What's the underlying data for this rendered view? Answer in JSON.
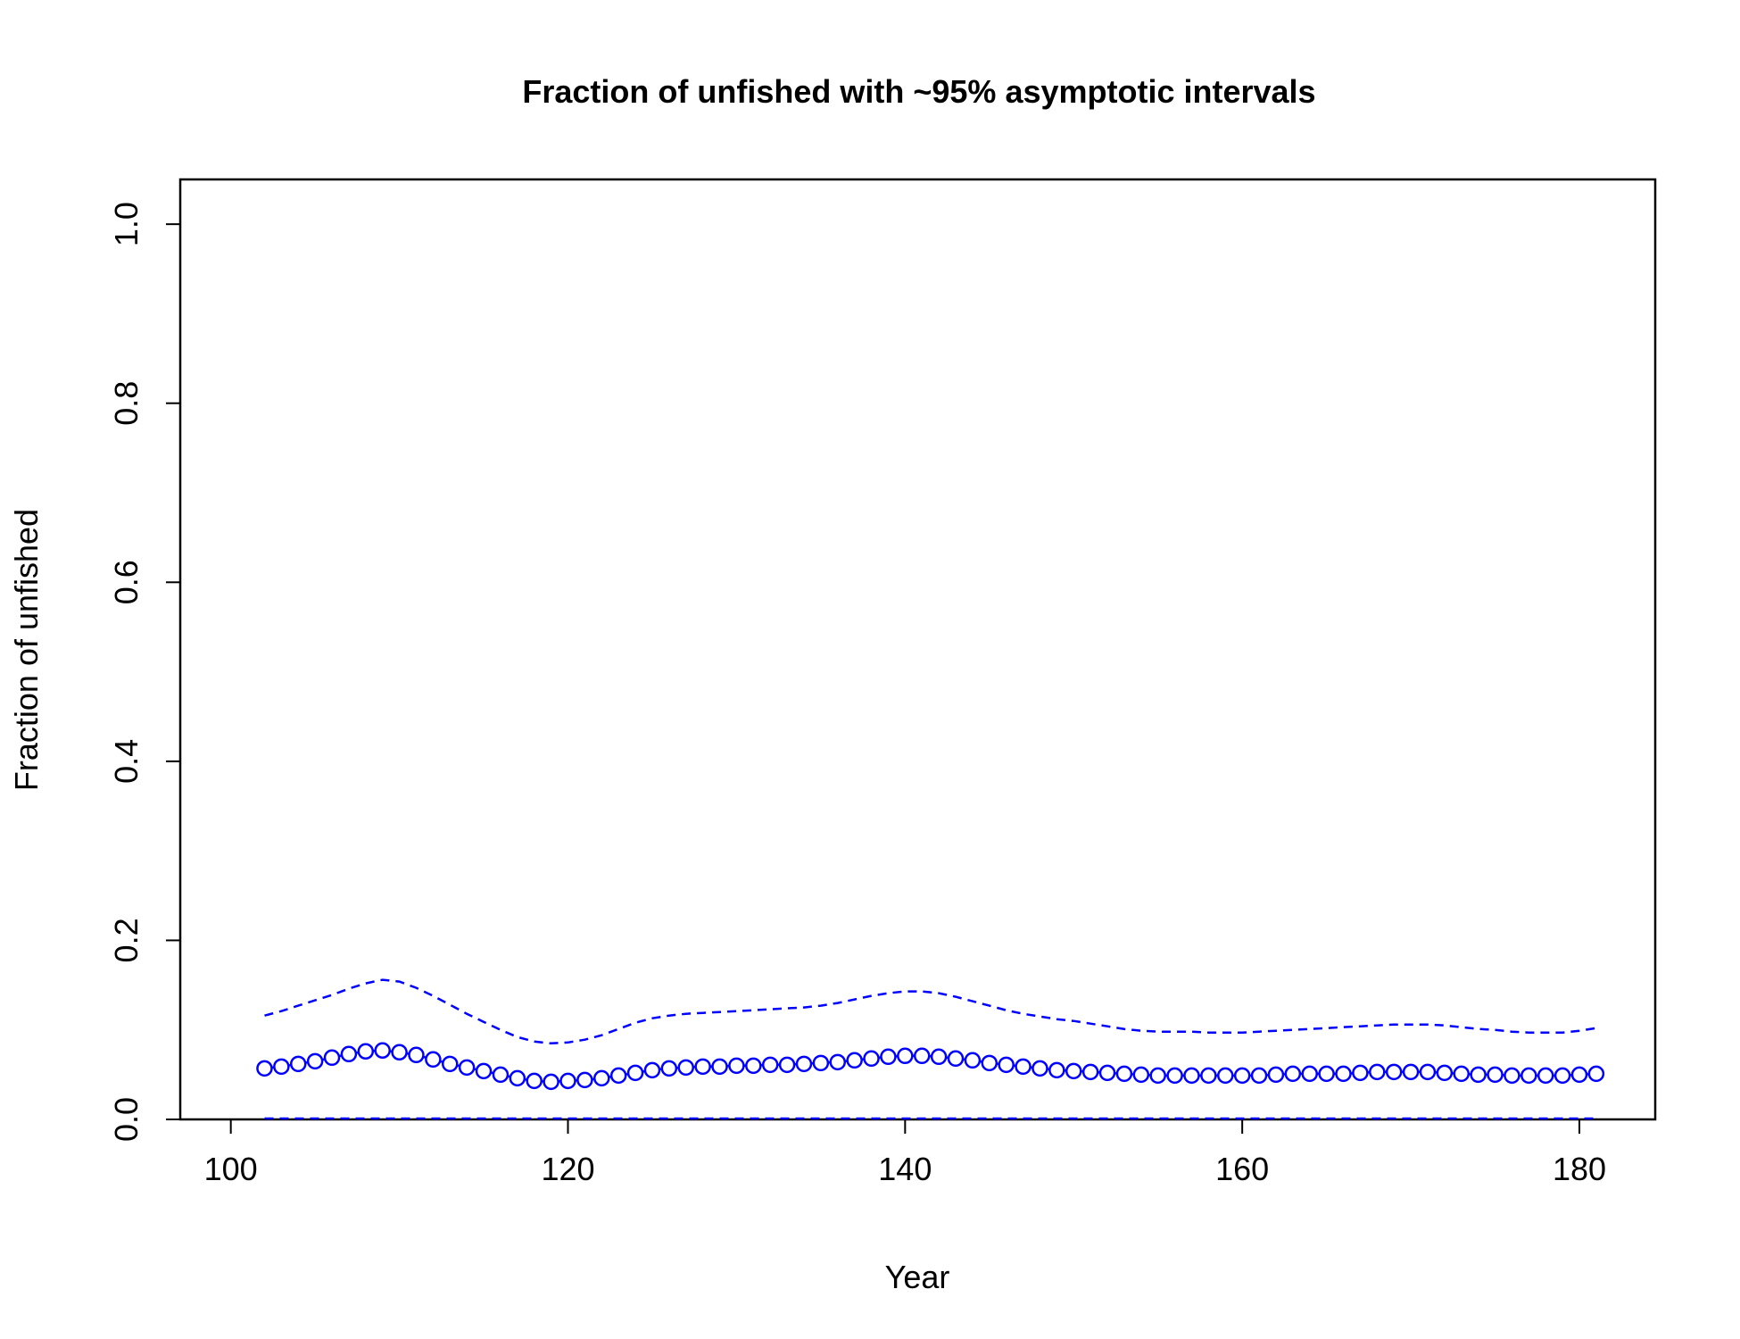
{
  "chart_data": {
    "type": "line",
    "title": "Fraction of unfished with ~95% asymptotic intervals",
    "xlabel": "Year",
    "ylabel": "Fraction of unfished",
    "xlim": [
      97,
      184.5
    ],
    "ylim": [
      0,
      1.05
    ],
    "x_ticks": [
      100,
      120,
      140,
      160,
      180
    ],
    "y_ticks": [
      0.0,
      0.2,
      0.4,
      0.6,
      0.8,
      1.0
    ],
    "x_tick_labels": [
      "100",
      "120",
      "140",
      "160",
      "180"
    ],
    "y_tick_labels": [
      "0.0",
      "0.2",
      "0.4",
      "0.6",
      "0.8",
      "1.0"
    ],
    "grid": false,
    "color": "#0000ff",
    "x": [
      102,
      103,
      104,
      105,
      106,
      107,
      108,
      109,
      110,
      111,
      112,
      113,
      114,
      115,
      116,
      117,
      118,
      119,
      120,
      121,
      122,
      123,
      124,
      125,
      126,
      127,
      128,
      129,
      130,
      131,
      132,
      133,
      134,
      135,
      136,
      137,
      138,
      139,
      140,
      141,
      142,
      143,
      144,
      145,
      146,
      147,
      148,
      149,
      150,
      151,
      152,
      153,
      154,
      155,
      156,
      157,
      158,
      159,
      160,
      161,
      162,
      163,
      164,
      165,
      166,
      167,
      168,
      169,
      170,
      171,
      172,
      173,
      174,
      175,
      176,
      177,
      178,
      179,
      180,
      181
    ],
    "series": [
      {
        "role": "estimate",
        "style": "line-with-circles",
        "values": [
          0.057,
          0.059,
          0.062,
          0.065,
          0.069,
          0.073,
          0.076,
          0.077,
          0.075,
          0.072,
          0.067,
          0.062,
          0.058,
          0.054,
          0.05,
          0.046,
          0.043,
          0.042,
          0.043,
          0.044,
          0.046,
          0.049,
          0.052,
          0.055,
          0.057,
          0.058,
          0.059,
          0.059,
          0.06,
          0.06,
          0.061,
          0.061,
          0.062,
          0.063,
          0.064,
          0.066,
          0.068,
          0.07,
          0.071,
          0.071,
          0.07,
          0.068,
          0.066,
          0.063,
          0.061,
          0.059,
          0.057,
          0.055,
          0.054,
          0.053,
          0.052,
          0.051,
          0.05,
          0.049,
          0.049,
          0.049,
          0.049,
          0.049,
          0.049,
          0.049,
          0.05,
          0.051,
          0.051,
          0.051,
          0.051,
          0.052,
          0.053,
          0.053,
          0.053,
          0.053,
          0.052,
          0.051,
          0.05,
          0.05,
          0.049,
          0.049,
          0.049,
          0.049,
          0.05,
          0.051
        ]
      },
      {
        "role": "upper-interval",
        "style": "dashed",
        "values": [
          0.116,
          0.121,
          0.127,
          0.133,
          0.139,
          0.146,
          0.152,
          0.156,
          0.154,
          0.147,
          0.138,
          0.128,
          0.118,
          0.109,
          0.1,
          0.092,
          0.087,
          0.085,
          0.086,
          0.089,
          0.094,
          0.101,
          0.108,
          0.113,
          0.116,
          0.118,
          0.119,
          0.12,
          0.121,
          0.122,
          0.123,
          0.124,
          0.125,
          0.127,
          0.13,
          0.134,
          0.138,
          0.141,
          0.143,
          0.143,
          0.141,
          0.137,
          0.132,
          0.127,
          0.122,
          0.118,
          0.115,
          0.112,
          0.11,
          0.107,
          0.104,
          0.101,
          0.099,
          0.098,
          0.098,
          0.098,
          0.097,
          0.097,
          0.097,
          0.098,
          0.099,
          0.1,
          0.101,
          0.102,
          0.103,
          0.104,
          0.105,
          0.106,
          0.106,
          0.106,
          0.105,
          0.103,
          0.101,
          0.1,
          0.098,
          0.097,
          0.097,
          0.097,
          0.099,
          0.102
        ]
      },
      {
        "role": "lower-interval",
        "style": "dashed",
        "values": [
          0.001,
          0.001,
          0.001,
          0.001,
          0.001,
          0.001,
          0.001,
          0.001,
          0.001,
          0.001,
          0.001,
          0.001,
          0.001,
          0.001,
          0.001,
          0.001,
          0.001,
          0.001,
          0.001,
          0.001,
          0.001,
          0.001,
          0.001,
          0.001,
          0.001,
          0.001,
          0.001,
          0.001,
          0.001,
          0.001,
          0.001,
          0.001,
          0.001,
          0.001,
          0.001,
          0.001,
          0.001,
          0.001,
          0.001,
          0.001,
          0.001,
          0.001,
          0.001,
          0.001,
          0.001,
          0.001,
          0.001,
          0.001,
          0.001,
          0.001,
          0.001,
          0.001,
          0.001,
          0.001,
          0.001,
          0.001,
          0.001,
          0.001,
          0.001,
          0.001,
          0.001,
          0.001,
          0.001,
          0.001,
          0.001,
          0.001,
          0.001,
          0.001,
          0.001,
          0.001,
          0.001,
          0.001,
          0.001,
          0.001,
          0.001,
          0.001,
          0.001,
          0.001,
          0.001,
          0.001
        ]
      }
    ]
  }
}
